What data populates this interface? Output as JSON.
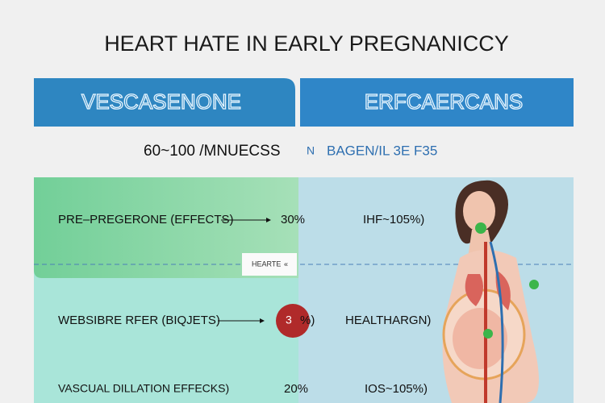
{
  "header": {
    "title": "HEART  HATE IN EARLY  PREGNANICCY"
  },
  "columns": {
    "left": "VESCASENONE",
    "right": "ERFCAERCANS"
  },
  "subtitle": {
    "range": "60~100  /MNUECSS",
    "mark": "N",
    "note": "BAGEN/IL 3E F35"
  },
  "divider_label": {
    "text": "HEARTE",
    "icon": "«"
  },
  "rows": [
    {
      "label": "PRE–PREGERONE (EFFECTS)",
      "value": "30%",
      "right": "IHF~105%)"
    },
    {
      "label": "WEBSIBRE RFER (BIQJETS)",
      "badge": "3",
      "value": "%)",
      "right": "HEALTHARGN)"
    },
    {
      "label": "VASCUAL DILLATION EFFECKS)",
      "value": "20%",
      "right": "IOS~105%)"
    }
  ]
}
